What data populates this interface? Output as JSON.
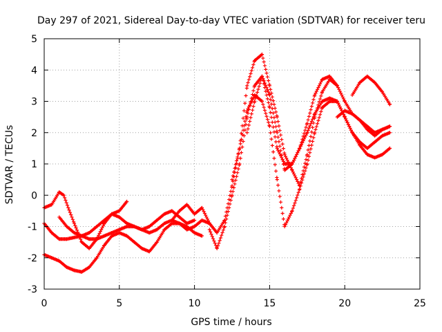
{
  "chart_data": {
    "type": "scatter",
    "title": "Day 297 of 2021, Sidereal Day-to-day VTEC variation (SDTVAR) for receiver teru",
    "xlabel": "GPS time / hours",
    "ylabel": "SDTVAR / TECUs",
    "xlim": [
      0,
      25
    ],
    "ylim": [
      -3,
      5
    ],
    "xticks": [
      0,
      5,
      10,
      15,
      20,
      25
    ],
    "yticks": [
      -3,
      -2,
      -1,
      0,
      1,
      2,
      3,
      4,
      5
    ],
    "grid": true,
    "marker": "+",
    "color": "#ff0000",
    "series": [
      {
        "name": "trace-1",
        "x": [
          0,
          0.5,
          1.0,
          1.3,
          1.6,
          2.0,
          2.5,
          3.0,
          3.5,
          4.0,
          4.5,
          5.0,
          5.5
        ],
        "y": [
          -0.4,
          -0.3,
          0.1,
          0.0,
          -0.4,
          -0.9,
          -1.5,
          -1.7,
          -1.4,
          -0.9,
          -0.6,
          -0.5,
          -0.2
        ]
      },
      {
        "name": "trace-2",
        "x": [
          0,
          0.5,
          1.0,
          1.5,
          2.0,
          2.5,
          3.0,
          3.5,
          4.0,
          4.5,
          5.0,
          5.5,
          6.0,
          6.5,
          7.0,
          7.5,
          8.0,
          8.5,
          9.0,
          9.5,
          10.0
        ],
        "y": [
          -0.9,
          -1.2,
          -1.4,
          -1.4,
          -1.35,
          -1.3,
          -1.2,
          -1.0,
          -0.8,
          -0.6,
          -0.7,
          -0.9,
          -1.0,
          -1.1,
          -1.0,
          -0.8,
          -0.6,
          -0.5,
          -0.7,
          -0.9,
          -0.8
        ]
      },
      {
        "name": "trace-3",
        "x": [
          0,
          0.5,
          1.0,
          1.5,
          2.0,
          2.5,
          3.0,
          3.5,
          4.0,
          4.5,
          5.0,
          5.5,
          6.0,
          6.5,
          7.0,
          7.5,
          8.0,
          8.5,
          9.0,
          9.5,
          10.0,
          10.5
        ],
        "y": [
          -1.9,
          -2.0,
          -2.1,
          -2.3,
          -2.4,
          -2.45,
          -2.3,
          -2.0,
          -1.6,
          -1.3,
          -1.2,
          -1.3,
          -1.5,
          -1.7,
          -1.8,
          -1.5,
          -1.1,
          -0.9,
          -0.9,
          -1.0,
          -1.2,
          -1.3
        ]
      },
      {
        "name": "trace-4",
        "x": [
          1.0,
          1.5,
          2.0,
          2.5,
          3.0,
          3.5,
          4.0,
          4.5,
          5.0,
          5.5,
          6.0,
          6.5,
          7.0,
          7.5,
          8.0,
          8.5,
          9.0,
          9.5,
          10.0,
          10.5,
          11.0
        ],
        "y": [
          -0.7,
          -1.0,
          -1.2,
          -1.3,
          -1.4,
          -1.4,
          -1.3,
          -1.2,
          -1.1,
          -1.0,
          -1.0,
          -1.1,
          -1.2,
          -1.1,
          -0.9,
          -0.8,
          -0.9,
          -1.1,
          -1.0,
          -0.8,
          -0.9
        ]
      },
      {
        "name": "trace-5",
        "x": [
          8.5,
          9.0,
          9.5,
          10.0,
          10.5,
          11.0,
          11.5,
          12.0,
          12.5,
          13.0,
          13.5,
          14.0,
          14.5,
          15.0,
          15.5,
          16.0,
          16.5,
          17.0,
          17.5,
          18.0,
          18.5,
          19.0,
          19.5,
          20.0,
          20.5,
          21.0,
          21.5,
          22.0,
          22.5,
          23.0
        ],
        "y": [
          -0.8,
          -0.5,
          -0.3,
          -0.6,
          -0.4,
          -0.9,
          -1.2,
          -0.8,
          0.3,
          1.5,
          3.5,
          4.3,
          4.5,
          3.5,
          2.5,
          1.3,
          0.8,
          0.3,
          1.3,
          2.5,
          3.3,
          3.7,
          3.5,
          3.0,
          2.6,
          2.4,
          2.2,
          2.0,
          2.1,
          2.2
        ]
      },
      {
        "name": "trace-6",
        "x": [
          11.0,
          11.5,
          12.0,
          12.5,
          13.0,
          13.5,
          14.0,
          14.5,
          15.0,
          15.5,
          16.0,
          16.5,
          17.0,
          17.5,
          18.0,
          18.5,
          19.0,
          19.5,
          20.0,
          20.5,
          21.0,
          21.5,
          22.0,
          22.5,
          23.0
        ],
        "y": [
          -1.1,
          -1.7,
          -1.0,
          0.0,
          1.0,
          2.5,
          3.5,
          3.8,
          2.8,
          1.5,
          1.0,
          1.0,
          1.5,
          2.0,
          2.6,
          3.0,
          3.1,
          3.0,
          2.5,
          2.0,
          1.7,
          1.5,
          1.7,
          1.9,
          2.0
        ]
      },
      {
        "name": "trace-7",
        "x": [
          12.5,
          13.0,
          13.5,
          14.0,
          14.5,
          15.0,
          15.5,
          16.0,
          16.5,
          17.0,
          17.5,
          18.0,
          18.5,
          19.0,
          19.5,
          20.0,
          20.5,
          21.0,
          21.5,
          22.0,
          22.5,
          23.0
        ],
        "y": [
          0.5,
          1.5,
          2.7,
          3.2,
          3.0,
          2.2,
          0.5,
          -1.0,
          -0.5,
          0.2,
          1.0,
          2.0,
          2.8,
          3.0,
          3.0,
          2.5,
          2.0,
          1.6,
          1.3,
          1.2,
          1.3,
          1.5
        ]
      },
      {
        "name": "trace-8",
        "x": [
          13.5,
          14.0,
          14.5,
          15.0,
          15.5,
          16.0,
          16.5,
          17.0,
          17.5,
          18.0,
          18.5,
          19.0,
          19.5
        ],
        "y": [
          2.0,
          3.0,
          3.8,
          3.2,
          2.0,
          0.8,
          1.0,
          1.5,
          2.3,
          3.2,
          3.7,
          3.8,
          3.5
        ]
      },
      {
        "name": "trace-9",
        "x": [
          19.5,
          20.0,
          20.5,
          21.0,
          21.5,
          22.0,
          22.5,
          23.0
        ],
        "y": [
          2.5,
          2.7,
          2.6,
          2.4,
          2.1,
          1.9,
          2.1,
          2.2
        ]
      },
      {
        "name": "trace-10",
        "x": [
          20.5,
          21.0,
          21.5,
          22.0,
          22.5,
          23.0
        ],
        "y": [
          3.2,
          3.6,
          3.8,
          3.6,
          3.3,
          2.9
        ]
      }
    ]
  }
}
